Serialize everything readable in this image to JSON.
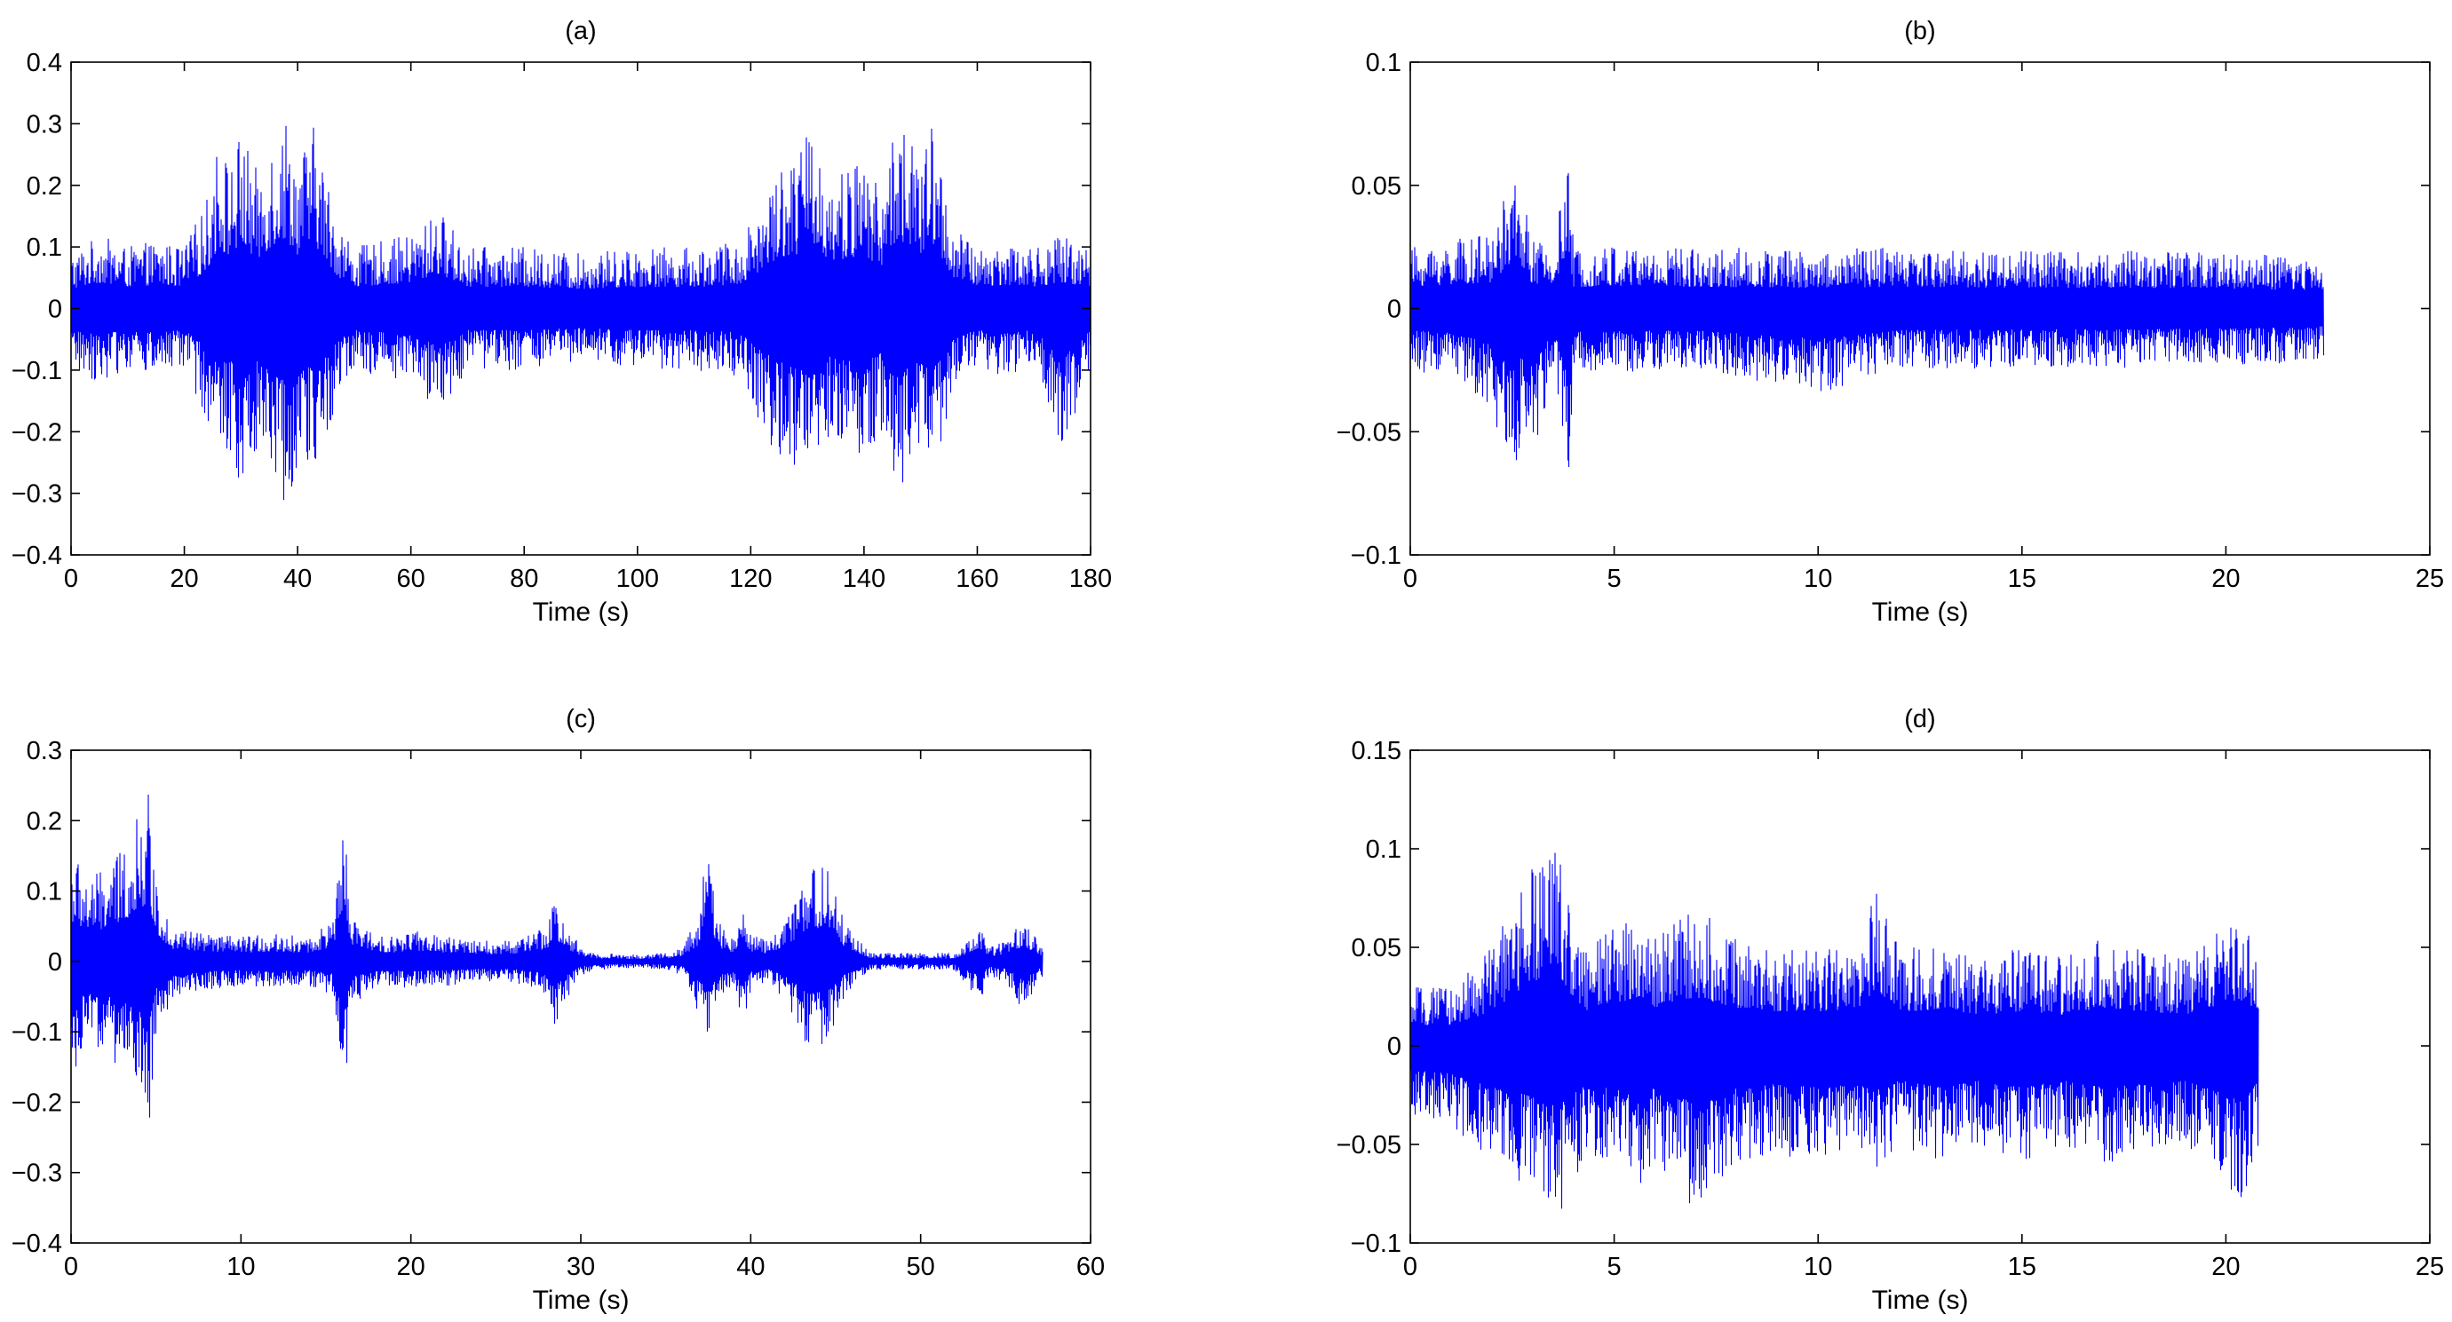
{
  "chart_data": [
    {
      "id": "a",
      "type": "line",
      "title": "(a)",
      "xlabel": "Time (s)",
      "ylabel": "",
      "xlim": [
        0,
        180
      ],
      "ylim": [
        -0.4,
        0.4
      ],
      "xticks": [
        0,
        20,
        40,
        60,
        80,
        100,
        120,
        140,
        160,
        180
      ],
      "xtick_labels": [
        "0",
        "20",
        "40",
        "60",
        "80",
        "100",
        "120",
        "140",
        "160",
        "180"
      ],
      "yticks": [
        -0.4,
        -0.3,
        -0.2,
        -0.1,
        0,
        0.1,
        0.2,
        0.3,
        0.4
      ],
      "ytick_labels": [
        "-0.4",
        "-0.3",
        "-0.2",
        "-0.1",
        "0",
        "0.1",
        "0.2",
        "0.3",
        "0.4"
      ],
      "grid": false,
      "series_color": "#0000ff",
      "envelope": {
        "x": [
          0,
          5,
          10,
          15,
          20,
          24,
          26,
          28,
          30,
          33,
          35,
          38,
          40,
          43,
          45,
          47,
          50,
          55,
          60,
          65,
          70,
          80,
          90,
          100,
          110,
          118,
          122,
          125,
          128,
          131,
          134,
          137,
          140,
          143,
          146,
          148,
          150,
          152,
          154,
          156,
          160,
          165,
          170,
          175,
          180
        ],
        "upper": [
          0.09,
          0.12,
          0.1,
          0.11,
          0.1,
          0.18,
          0.28,
          0.24,
          0.29,
          0.22,
          0.28,
          0.32,
          0.25,
          0.3,
          0.22,
          0.15,
          0.1,
          0.11,
          0.12,
          0.16,
          0.1,
          0.1,
          0.09,
          0.1,
          0.1,
          0.11,
          0.18,
          0.24,
          0.25,
          0.3,
          0.22,
          0.23,
          0.25,
          0.19,
          0.33,
          0.28,
          0.24,
          0.3,
          0.22,
          0.13,
          0.1,
          0.11,
          0.1,
          0.12,
          0.1
        ],
        "lower": [
          -0.1,
          -0.12,
          -0.1,
          -0.11,
          -0.1,
          -0.18,
          -0.27,
          -0.23,
          -0.3,
          -0.22,
          -0.26,
          -0.33,
          -0.25,
          -0.28,
          -0.22,
          -0.15,
          -0.1,
          -0.11,
          -0.12,
          -0.17,
          -0.1,
          -0.1,
          -0.09,
          -0.1,
          -0.1,
          -0.11,
          -0.2,
          -0.24,
          -0.28,
          -0.3,
          -0.22,
          -0.24,
          -0.25,
          -0.2,
          -0.31,
          -0.26,
          -0.24,
          -0.28,
          -0.22,
          -0.13,
          -0.1,
          -0.11,
          -0.1,
          -0.23,
          -0.1
        ]
      }
    },
    {
      "id": "b",
      "type": "line",
      "title": "(b)",
      "xlabel": "Time (s)",
      "ylabel": "",
      "xlim": [
        0,
        25
      ],
      "ylim": [
        -0.1,
        0.1
      ],
      "xticks": [
        0,
        5,
        10,
        15,
        20,
        25
      ],
      "xtick_labels": [
        "0",
        "5",
        "10",
        "15",
        "20",
        "25"
      ],
      "yticks": [
        -0.1,
        -0.05,
        0,
        0.05,
        0.1
      ],
      "ytick_labels": [
        "-0.1",
        "-0.05",
        "0",
        "0.05",
        "0.1"
      ],
      "grid": false,
      "series_color": "#0000ff",
      "envelope": {
        "x": [
          0,
          1,
          2,
          2.5,
          2.8,
          3,
          3.5,
          3.9,
          4,
          5,
          7,
          10,
          12,
          15,
          18,
          20,
          22,
          22.4
        ],
        "upper": [
          0.025,
          0.028,
          0.03,
          0.055,
          0.045,
          0.028,
          0.026,
          0.062,
          0.025,
          0.026,
          0.025,
          0.024,
          0.025,
          0.024,
          0.024,
          0.023,
          0.021,
          0.02
        ],
        "lower": [
          -0.025,
          -0.028,
          -0.04,
          -0.075,
          -0.05,
          -0.06,
          -0.028,
          -0.068,
          -0.025,
          -0.026,
          -0.025,
          -0.035,
          -0.025,
          -0.024,
          -0.024,
          -0.023,
          -0.022,
          -0.02
        ]
      }
    },
    {
      "id": "c",
      "type": "line",
      "title": "(c)",
      "xlabel": "Time (s)",
      "ylabel": "",
      "xlim": [
        0,
        60
      ],
      "ylim": [
        -0.4,
        0.3
      ],
      "xticks": [
        0,
        10,
        20,
        30,
        40,
        50,
        60
      ],
      "xtick_labels": [
        "0",
        "10",
        "20",
        "30",
        "40",
        "50",
        "60"
      ],
      "yticks": [
        -0.4,
        -0.3,
        -0.2,
        -0.1,
        0,
        0.1,
        0.2,
        0.3
      ],
      "ytick_labels": [
        "-0.4",
        "-0.3",
        "-0.2",
        "-0.1",
        "0",
        "0.1",
        "0.2",
        "0.3"
      ],
      "grid": false,
      "series_color": "#0000ff",
      "envelope": {
        "x": [
          0,
          1,
          2,
          3,
          4,
          4.6,
          5,
          6,
          8,
          10,
          12,
          14,
          15.5,
          16,
          16.5,
          18,
          19,
          20,
          22,
          24,
          26,
          28,
          28.5,
          29,
          30,
          31,
          33,
          35,
          36,
          37,
          37.5,
          38,
          39,
          39.5,
          40,
          41,
          42,
          43.5,
          44.5,
          45.5,
          47,
          50,
          52,
          53.5,
          54,
          55,
          56,
          57.2
        ],
        "upper": [
          0.16,
          0.12,
          0.13,
          0.16,
          0.21,
          0.24,
          0.11,
          0.05,
          0.04,
          0.035,
          0.04,
          0.035,
          0.06,
          0.22,
          0.06,
          0.04,
          0.035,
          0.045,
          0.035,
          0.03,
          0.03,
          0.05,
          0.095,
          0.06,
          0.02,
          0.012,
          0.01,
          0.012,
          0.02,
          0.07,
          0.19,
          0.06,
          0.035,
          0.09,
          0.04,
          0.03,
          0.06,
          0.13,
          0.14,
          0.06,
          0.012,
          0.012,
          0.012,
          0.05,
          0.02,
          0.03,
          0.06,
          0.02
        ],
        "lower": [
          -0.18,
          -0.12,
          -0.13,
          -0.16,
          -0.2,
          -0.24,
          -0.11,
          -0.05,
          -0.04,
          -0.035,
          -0.04,
          -0.035,
          -0.05,
          -0.22,
          -0.06,
          -0.04,
          -0.035,
          -0.04,
          -0.035,
          -0.03,
          -0.03,
          -0.05,
          -0.1,
          -0.06,
          -0.02,
          -0.012,
          -0.01,
          -0.012,
          -0.02,
          -0.08,
          -0.12,
          -0.06,
          -0.035,
          -0.1,
          -0.04,
          -0.03,
          -0.06,
          -0.13,
          -0.12,
          -0.05,
          -0.012,
          -0.012,
          -0.012,
          -0.06,
          -0.02,
          -0.03,
          -0.07,
          -0.02
        ]
      }
    },
    {
      "id": "d",
      "type": "line",
      "title": "(d)",
      "xlabel": "Time (s)",
      "ylabel": "",
      "xlim": [
        0,
        25
      ],
      "ylim": [
        -0.1,
        0.15
      ],
      "xticks": [
        0,
        5,
        10,
        15,
        20,
        25
      ],
      "xtick_labels": [
        "0",
        "5",
        "10",
        "15",
        "20",
        "25"
      ],
      "yticks": [
        -0.1,
        -0.05,
        0,
        0.05,
        0.1,
        0.15
      ],
      "ytick_labels": [
        "-0.1",
        "-0.05",
        "0",
        "0.05",
        "0.1",
        "0.15"
      ],
      "grid": false,
      "series_color": "#0000ff",
      "envelope": {
        "x": [
          0,
          1,
          2,
          2.8,
          3.6,
          4.2,
          5,
          5.5,
          6,
          6.5,
          7,
          8,
          9,
          10,
          11,
          11.4,
          12,
          13,
          14,
          15,
          16,
          17,
          18,
          19,
          19.5,
          20,
          20.4,
          20.8
        ],
        "upper": [
          0.03,
          0.03,
          0.05,
          0.085,
          0.108,
          0.05,
          0.06,
          0.07,
          0.055,
          0.065,
          0.07,
          0.055,
          0.05,
          0.05,
          0.05,
          0.08,
          0.05,
          0.05,
          0.045,
          0.05,
          0.045,
          0.055,
          0.05,
          0.045,
          0.055,
          0.06,
          0.065,
          0.05
        ],
        "lower": [
          -0.035,
          -0.04,
          -0.06,
          -0.07,
          -0.088,
          -0.06,
          -0.06,
          -0.075,
          -0.06,
          -0.07,
          -0.085,
          -0.06,
          -0.055,
          -0.06,
          -0.055,
          -0.065,
          -0.05,
          -0.06,
          -0.05,
          -0.06,
          -0.05,
          -0.06,
          -0.055,
          -0.05,
          -0.06,
          -0.07,
          -0.082,
          -0.05
        ]
      }
    }
  ]
}
